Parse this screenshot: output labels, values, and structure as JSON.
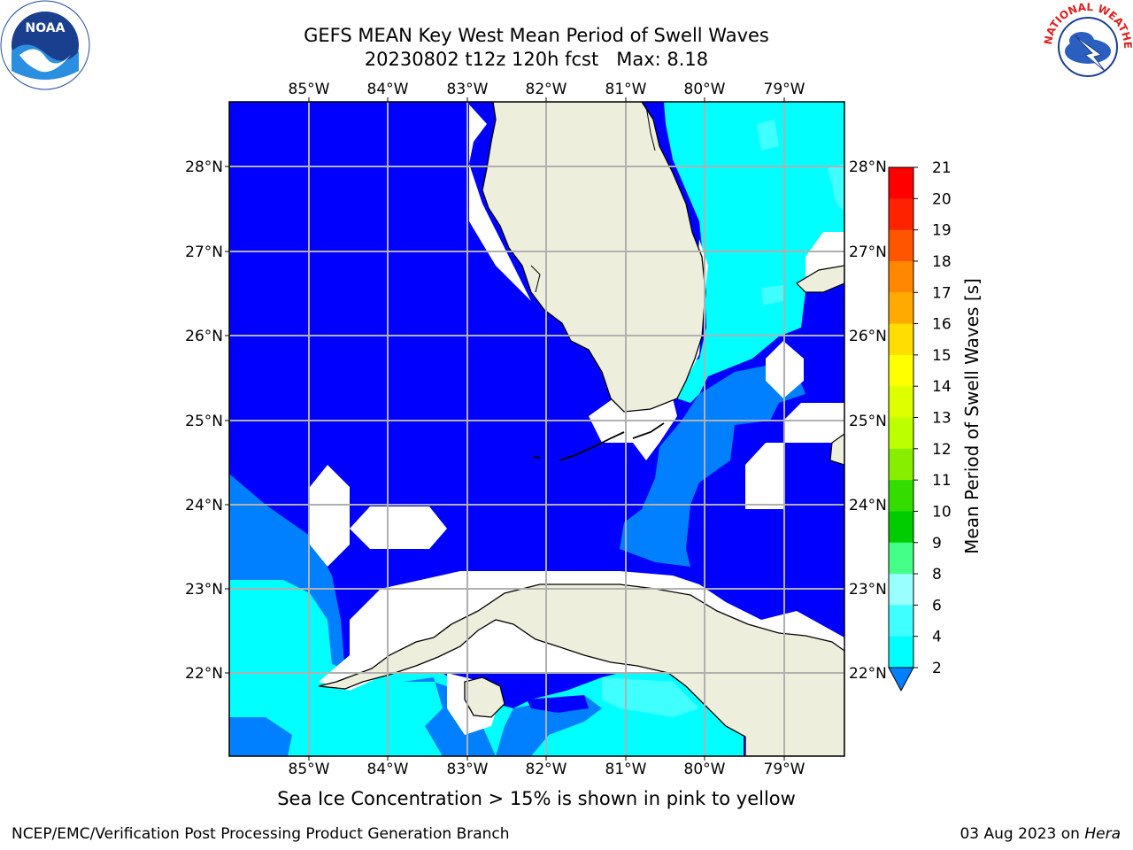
{
  "header": {
    "title_line1": "GEFS MEAN Key West Mean Period of Swell Waves",
    "title_line2": "20230802 t12z 120h fcst   Max: 8.18"
  },
  "map": {
    "lon_labels": [
      "85°W",
      "84°W",
      "83°W",
      "82°W",
      "81°W",
      "80°W",
      "79°W"
    ],
    "lat_labels": [
      "28°N",
      "27°N",
      "26°N",
      "25°N",
      "24°N",
      "23°N",
      "22°N"
    ],
    "colors": {
      "land": "#eeeedd",
      "ocean_2_4": "#0000ff",
      "ocean_4_6": "#0080ff",
      "ocean_6_8": "#00ffff",
      "ocean_8_9": "#40ffff",
      "grid": "#b0b0b0"
    }
  },
  "colorbar": {
    "label": "Mean Period of Swell Waves [s]",
    "ticks": [
      "21",
      "20",
      "19",
      "18",
      "17",
      "16",
      "15",
      "14",
      "13",
      "12",
      "11",
      "10",
      "9",
      "8",
      "6",
      "4",
      "2"
    ],
    "colors": [
      "#ff0000",
      "#ff2200",
      "#ff5500",
      "#ff8800",
      "#ffaa00",
      "#ffdd00",
      "#ffff00",
      "#ddff00",
      "#bbff00",
      "#88ee00",
      "#33dd00",
      "#00cc00",
      "#44ff88",
      "#99ffff",
      "#40ffff",
      "#00ffff",
      "#0080ff",
      "#0000ff"
    ]
  },
  "caption": "Sea Ice Concentration > 15% is shown in pink to yellow",
  "footer": {
    "left": "NCEP/EMC/Verification Post Processing Product Generation Branch",
    "date": "03 Aug 2023 on ",
    "host": "Hera"
  },
  "logos": {
    "noaa_text": "NOAA",
    "nws_text": "NATIONAL WEATHER SERVICE"
  }
}
